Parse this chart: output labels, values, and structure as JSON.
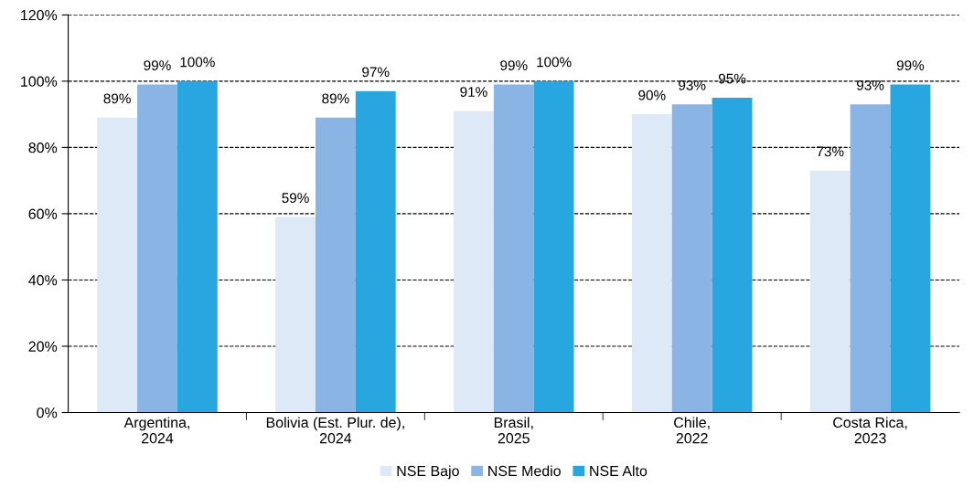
{
  "chart_data": {
    "type": "bar",
    "categories": [
      "Argentina,\n2024",
      "Bolivia (Est. Plur. de),\n2024",
      "Brasil,\n2025",
      "Chile,\n2022",
      "Costa Rica,\n2023"
    ],
    "series": [
      {
        "name": "NSE Bajo",
        "color": "#dde9f7",
        "values": [
          89,
          59,
          91,
          90,
          73
        ],
        "value_labels": [
          "89%",
          "59%",
          "91%",
          "90%",
          "73%"
        ]
      },
      {
        "name": "NSE Medio",
        "color": "#8ab4e3",
        "values": [
          99,
          89,
          99,
          93,
          93
        ],
        "value_labels": [
          "99%",
          "89%",
          "99%",
          "93%",
          "93%"
        ]
      },
      {
        "name": "NSE Alto",
        "color": "#27a6e0",
        "values": [
          100,
          97,
          100,
          95,
          99
        ],
        "value_labels": [
          "100%",
          "97%",
          "100%",
          "95%",
          "99%"
        ]
      }
    ],
    "ylim": [
      0,
      120
    ],
    "yticks": [
      {
        "value": 0,
        "label": "0%"
      },
      {
        "value": 20,
        "label": "20%"
      },
      {
        "value": 40,
        "label": "40%"
      },
      {
        "value": 60,
        "label": "60%"
      },
      {
        "value": 80,
        "label": "80%"
      },
      {
        "value": 100,
        "label": "100%"
      },
      {
        "value": 120,
        "label": "120%"
      }
    ],
    "grid": "y",
    "legend": "bottom"
  }
}
